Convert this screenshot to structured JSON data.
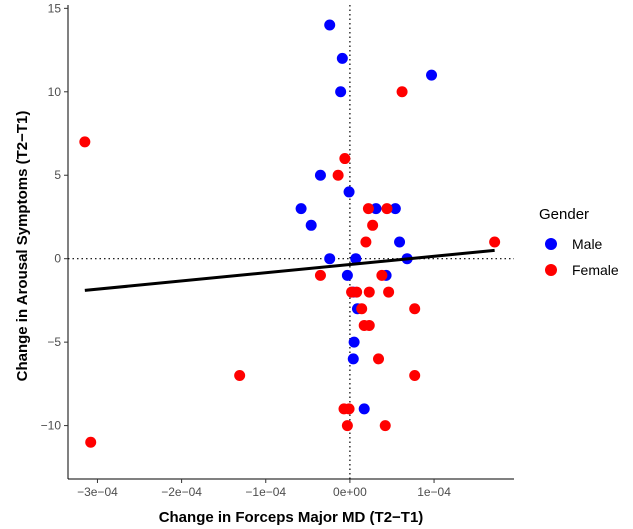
{
  "chart_data": {
    "type": "scatter",
    "xlabel": "Change in Forceps Major MD (T2−T1)",
    "ylabel": "Change in Arousal Symptoms (T2−T1)",
    "xlim": [
      -0.000335,
      0.000195
    ],
    "ylim": [
      -13.2,
      15.2
    ],
    "x_ticks": [
      {
        "value": -0.0003,
        "label": "−3e−04"
      },
      {
        "value": -0.0002,
        "label": "−2e−04"
      },
      {
        "value": -0.0001,
        "label": "−1e−04"
      },
      {
        "value": 0,
        "label": "0e+00"
      },
      {
        "value": 0.0001,
        "label": "1e−04"
      }
    ],
    "y_ticks": [
      {
        "value": -10,
        "label": "−10"
      },
      {
        "value": -5,
        "label": "−5"
      },
      {
        "value": 0,
        "label": "0"
      },
      {
        "value": 5,
        "label": "5"
      },
      {
        "value": 10,
        "label": "10"
      },
      {
        "value": 15,
        "label": "15"
      }
    ],
    "reference_lines": {
      "x": 0,
      "y": 0,
      "style": "dotted"
    },
    "grid": false,
    "legend": {
      "title": "Gender",
      "placement": "right",
      "entries": [
        {
          "label": "Male",
          "color": "#0000ff"
        },
        {
          "label": "Female",
          "color": "#ff0000"
        }
      ]
    },
    "fit_line": {
      "x": [
        -0.000315,
        0.000172
      ],
      "y": [
        -1.9,
        0.5
      ],
      "color": "#000000"
    },
    "series": [
      {
        "name": "Male",
        "color": "#0000ff",
        "points": [
          {
            "x": -2.4e-05,
            "y": 14
          },
          {
            "x": -9e-06,
            "y": 12
          },
          {
            "x": -1.1e-05,
            "y": 10
          },
          {
            "x": 9.7e-05,
            "y": 11
          },
          {
            "x": -3.5e-05,
            "y": 5
          },
          {
            "x": -1e-06,
            "y": 4
          },
          {
            "x": -5.8e-05,
            "y": 3
          },
          {
            "x": -4.6e-05,
            "y": 2
          },
          {
            "x": -2.4e-05,
            "y": 0
          },
          {
            "x": 7e-06,
            "y": 0
          },
          {
            "x": -3e-06,
            "y": -1
          },
          {
            "x": 3.1e-05,
            "y": 3
          },
          {
            "x": 5.4e-05,
            "y": 3
          },
          {
            "x": 5.9e-05,
            "y": 1
          },
          {
            "x": 6.8e-05,
            "y": 0
          },
          {
            "x": 4.3e-05,
            "y": -1
          },
          {
            "x": 4e-06,
            "y": -2
          },
          {
            "x": 9e-06,
            "y": -3
          },
          {
            "x": 5e-06,
            "y": -5
          },
          {
            "x": 4e-06,
            "y": -6
          },
          {
            "x": 1.7e-05,
            "y": -9
          }
        ]
      },
      {
        "name": "Female",
        "color": "#ff0000",
        "points": [
          {
            "x": -0.000315,
            "y": 7
          },
          {
            "x": -0.000308,
            "y": -11
          },
          {
            "x": -0.000131,
            "y": -7
          },
          {
            "x": 6.2e-05,
            "y": 10
          },
          {
            "x": 0.000172,
            "y": 1
          },
          {
            "x": -6e-06,
            "y": 6
          },
          {
            "x": -1.4e-05,
            "y": 5
          },
          {
            "x": 2.2e-05,
            "y": 3
          },
          {
            "x": 4.4e-05,
            "y": 3
          },
          {
            "x": 2.7e-05,
            "y": 2
          },
          {
            "x": 1.9e-05,
            "y": 1
          },
          {
            "x": -3.5e-05,
            "y": -1
          },
          {
            "x": 3.8e-05,
            "y": -1
          },
          {
            "x": 2e-06,
            "y": -2
          },
          {
            "x": 8e-06,
            "y": -2
          },
          {
            "x": 2.3e-05,
            "y": -2
          },
          {
            "x": 4.6e-05,
            "y": -2
          },
          {
            "x": 1.4e-05,
            "y": -3
          },
          {
            "x": 7.7e-05,
            "y": -3
          },
          {
            "x": 1.7e-05,
            "y": -4
          },
          {
            "x": 2.3e-05,
            "y": -4
          },
          {
            "x": 3.4e-05,
            "y": -6
          },
          {
            "x": 7.7e-05,
            "y": -7
          },
          {
            "x": -7e-06,
            "y": -9
          },
          {
            "x": -1e-06,
            "y": -9
          },
          {
            "x": -3e-06,
            "y": -10
          },
          {
            "x": 4.2e-05,
            "y": -10
          }
        ]
      }
    ]
  }
}
